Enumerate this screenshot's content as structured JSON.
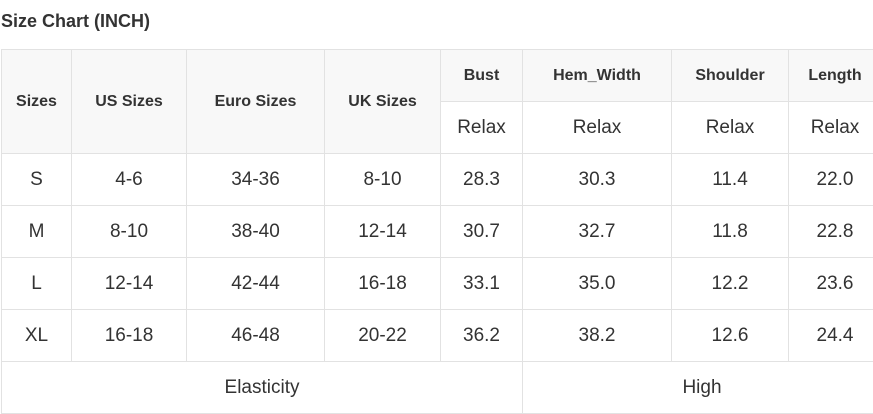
{
  "title": "Size Chart (INCH)",
  "headers": [
    "Sizes",
    "US Sizes",
    "Euro Sizes",
    "UK Sizes",
    "Bust",
    "Hem_Width",
    "Shoulder",
    "Length"
  ],
  "subheader": [
    "Relax",
    "Relax",
    "Relax",
    "Relax"
  ],
  "rows": [
    [
      "S",
      "4-6",
      "34-36",
      "8-10",
      "28.3",
      "30.3",
      "11.4",
      "22.0"
    ],
    [
      "M",
      "8-10",
      "38-40",
      "12-14",
      "30.7",
      "32.7",
      "11.8",
      "22.8"
    ],
    [
      "L",
      "12-14",
      "42-44",
      "16-18",
      "33.1",
      "35.0",
      "12.2",
      "23.6"
    ],
    [
      "XL",
      "16-18",
      "46-48",
      "20-22",
      "36.2",
      "38.2",
      "12.6",
      "24.4"
    ]
  ],
  "footer": {
    "label": "Elasticity",
    "value": "High"
  }
}
